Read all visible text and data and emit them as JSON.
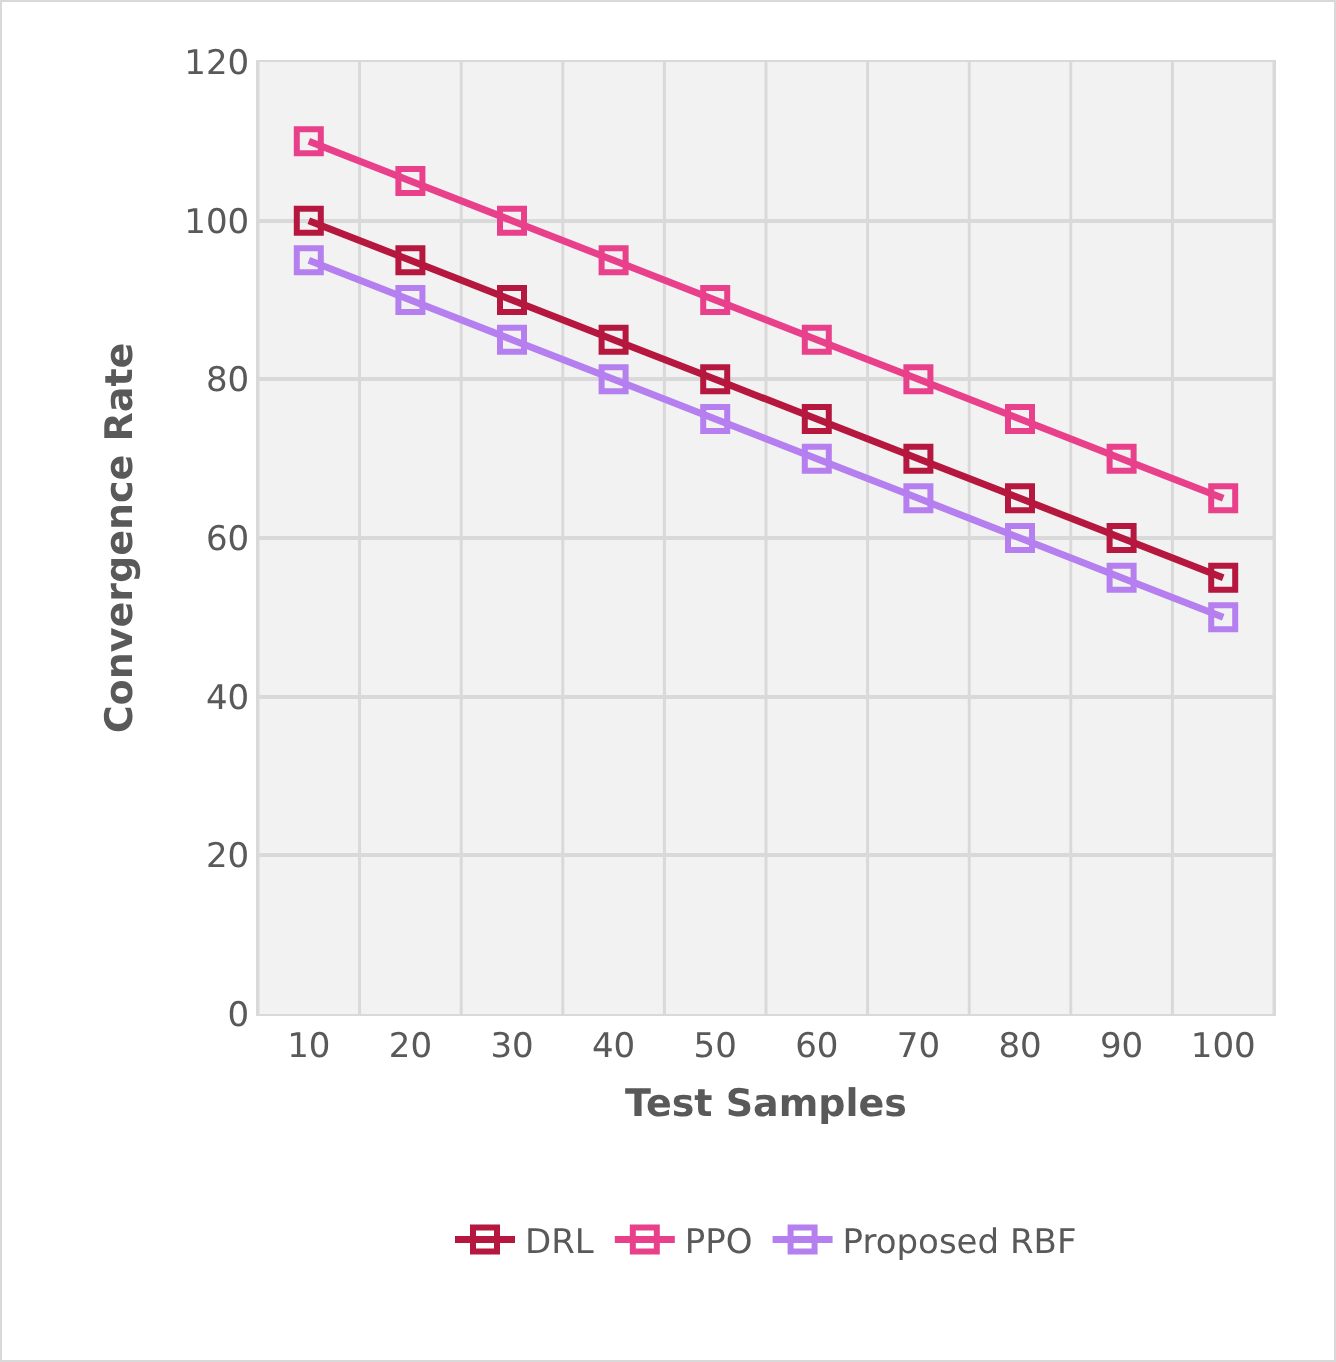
{
  "chart_data": {
    "type": "line",
    "xlabel": "Test Samples",
    "ylabel": "Convergence Rate",
    "categories": [
      "10",
      "20",
      "30",
      "40",
      "50",
      "60",
      "70",
      "80",
      "90",
      "100"
    ],
    "series": [
      {
        "name": "DRL",
        "color": "#b5173f",
        "values": [
          100,
          95,
          90,
          85,
          80,
          75,
          70,
          65,
          60,
          55
        ]
      },
      {
        "name": "PPO",
        "color": "#e8408a",
        "values": [
          110,
          105,
          100,
          95,
          90,
          85,
          80,
          75,
          70,
          65
        ]
      },
      {
        "name": "Proposed RBF",
        "color": "#b57ff0",
        "values": [
          95,
          90,
          85,
          80,
          75,
          70,
          65,
          60,
          55,
          50
        ]
      }
    ],
    "ylim": [
      0,
      120
    ],
    "yticks": [
      0,
      20,
      40,
      60,
      80,
      100,
      120
    ],
    "grid": true,
    "legend": "bottom",
    "marker": "square",
    "line_style": "solid"
  }
}
